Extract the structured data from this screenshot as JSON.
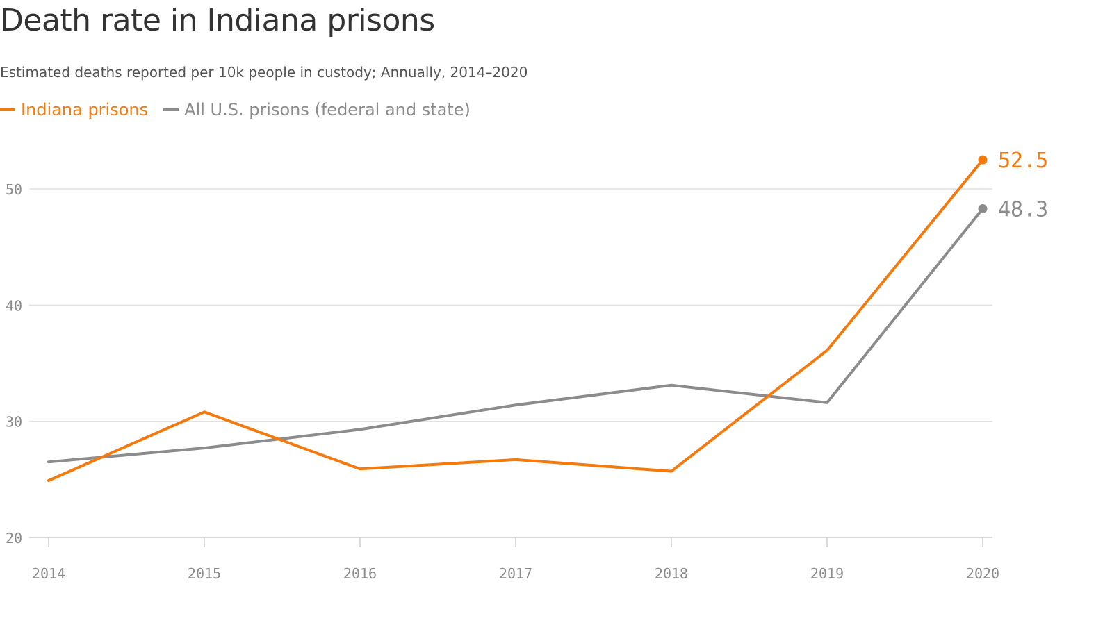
{
  "header": {
    "title": "Death rate in Indiana prisons",
    "subtitle": "Estimated deaths reported per 10k people in custody; Annually, 2014–2020"
  },
  "legend": {
    "items": [
      {
        "label": "Indiana prisons",
        "color": "#f57a0e"
      },
      {
        "label": "All U.S. prisons (federal and state)",
        "color": "#8c8c8c"
      }
    ]
  },
  "chart_data": {
    "type": "line",
    "title": "Death rate in Indiana prisons",
    "subtitle": "Estimated deaths reported per 10k people in custody; Annually, 2014–2020",
    "xlabel": "",
    "ylabel": "",
    "x": [
      "2014",
      "2015",
      "2016",
      "2017",
      "2018",
      "2019",
      "2020"
    ],
    "ylim": [
      20,
      55
    ],
    "yticks": [
      20,
      30,
      40,
      50
    ],
    "grid": true,
    "legend_position": "top-left",
    "series": [
      {
        "name": "Indiana prisons",
        "color": "#f57a0e",
        "values": [
          24.9,
          30.8,
          25.9,
          26.7,
          25.7,
          36.1,
          52.5
        ],
        "end_label": "52.5"
      },
      {
        "name": "All U.S. prisons (federal and state)",
        "color": "#8c8c8c",
        "values": [
          26.5,
          27.7,
          29.3,
          31.4,
          33.1,
          31.6,
          48.3
        ],
        "end_label": "48.3"
      }
    ]
  }
}
